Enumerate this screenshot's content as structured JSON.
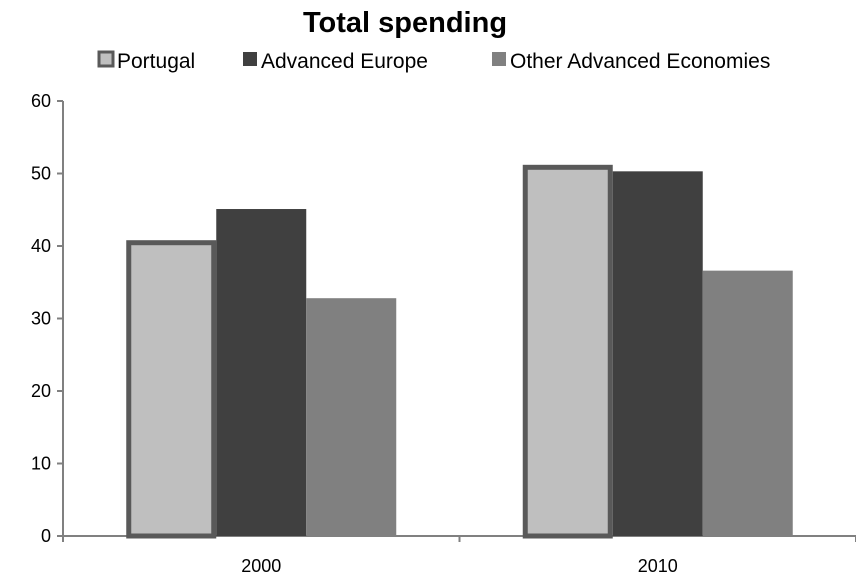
{
  "chart_data": {
    "type": "bar",
    "title": "Total spending",
    "xlabel": "",
    "ylabel": "",
    "categories": [
      "2000",
      "2010"
    ],
    "series": [
      {
        "name": "Portugal",
        "values": [
          40.8,
          51.2
        ],
        "color": "#bfbfbf",
        "border": "#595959"
      },
      {
        "name": "Advanced Europe",
        "values": [
          45.1,
          50.3
        ],
        "color": "#404040"
      },
      {
        "name": "Other Advanced Economies",
        "values": [
          32.8,
          36.6
        ],
        "color": "#808080"
      }
    ],
    "ylim": [
      0,
      60
    ],
    "yticks": [
      "0",
      "10",
      "20",
      "30",
      "40",
      "50",
      "60"
    ],
    "grid": false,
    "legend_position": "top"
  }
}
